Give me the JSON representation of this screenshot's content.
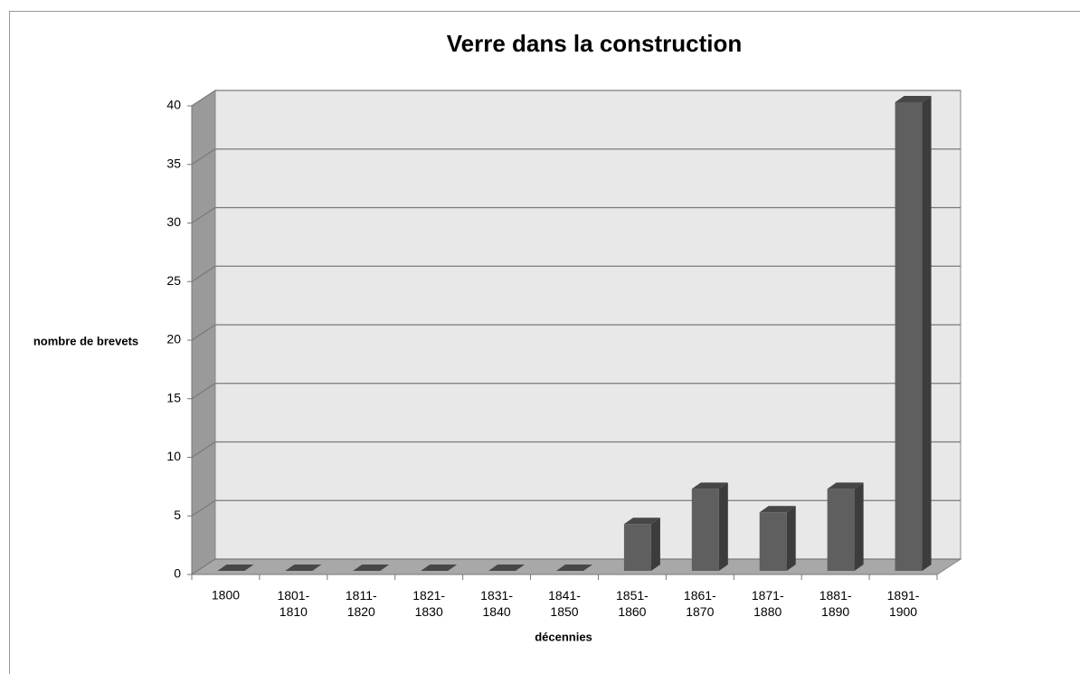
{
  "chart_data": {
    "type": "bar3d",
    "title": "Verre dans la construction",
    "x_label": "décennies",
    "y_label": "nombre de brevets",
    "categories": [
      "1800",
      "1801-1810",
      "1811-1820",
      "1821-1830",
      "1831-1840",
      "1841-1850",
      "1851-1860",
      "1861-1870",
      "1871-1880",
      "1881-1890",
      "1891-1900"
    ],
    "values": [
      0,
      0,
      0,
      0,
      0,
      0,
      4,
      7,
      5,
      7,
      40
    ],
    "color": "#5f5f5f",
    "ylim": [
      0,
      40
    ],
    "yticks": [
      0,
      5,
      10,
      15,
      20,
      25,
      30,
      35,
      40
    ],
    "grid": true
  }
}
